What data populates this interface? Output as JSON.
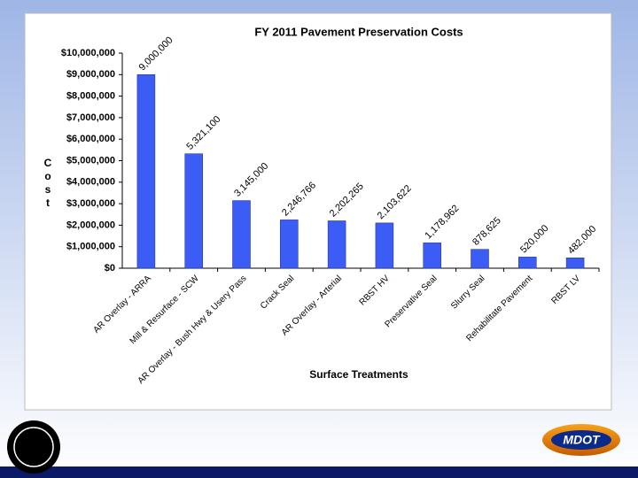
{
  "chart_data": {
    "type": "bar",
    "title": "FY 2011 Pavement Preservation Costs",
    "x_label": "Surface Treatments",
    "y_label": "Cost",
    "categories": [
      "AR Overlay - ARRA",
      "Mill & Resurface - SCW",
      "AR Overlay - Bush Hwy & Usery Pass",
      "Crack Seal",
      "AR Overlay - Arterial",
      "RBST HV",
      "Preservative Seal",
      "Slurry Seal",
      "Rehabilitate Pavement",
      "RBST LV"
    ],
    "values": [
      9000000,
      5321100,
      3145000,
      2246766,
      2202265,
      2103622,
      1178962,
      878625,
      520000,
      482000
    ],
    "value_labels": [
      "9,000,000",
      "5,321,100",
      "3,145,000",
      "2,246,766",
      "2,202,265",
      "2,103,622",
      "1,178,962",
      "878,625",
      "520,000",
      "482,000"
    ],
    "color": "#3b5cf5",
    "ylim": [
      0,
      10000000
    ],
    "yticks": [
      {
        "value": 0,
        "label": "$0"
      },
      {
        "value": 1000000,
        "label": "$1,000,000"
      },
      {
        "value": 2000000,
        "label": "$2,000,000"
      },
      {
        "value": 3000000,
        "label": "$3,000,000"
      },
      {
        "value": 4000000,
        "label": "$4,000,000"
      },
      {
        "value": 5000000,
        "label": "$5,000,000"
      },
      {
        "value": 6000000,
        "label": "$6,000,000"
      },
      {
        "value": 7000000,
        "label": "$7,000,000"
      },
      {
        "value": 8000000,
        "label": "$8,000,000"
      },
      {
        "value": 9000000,
        "label": "$9,000,000"
      },
      {
        "value": 10000000,
        "label": "$10,000,000"
      }
    ],
    "grid": false
  },
  "logo_text": "MDOT"
}
